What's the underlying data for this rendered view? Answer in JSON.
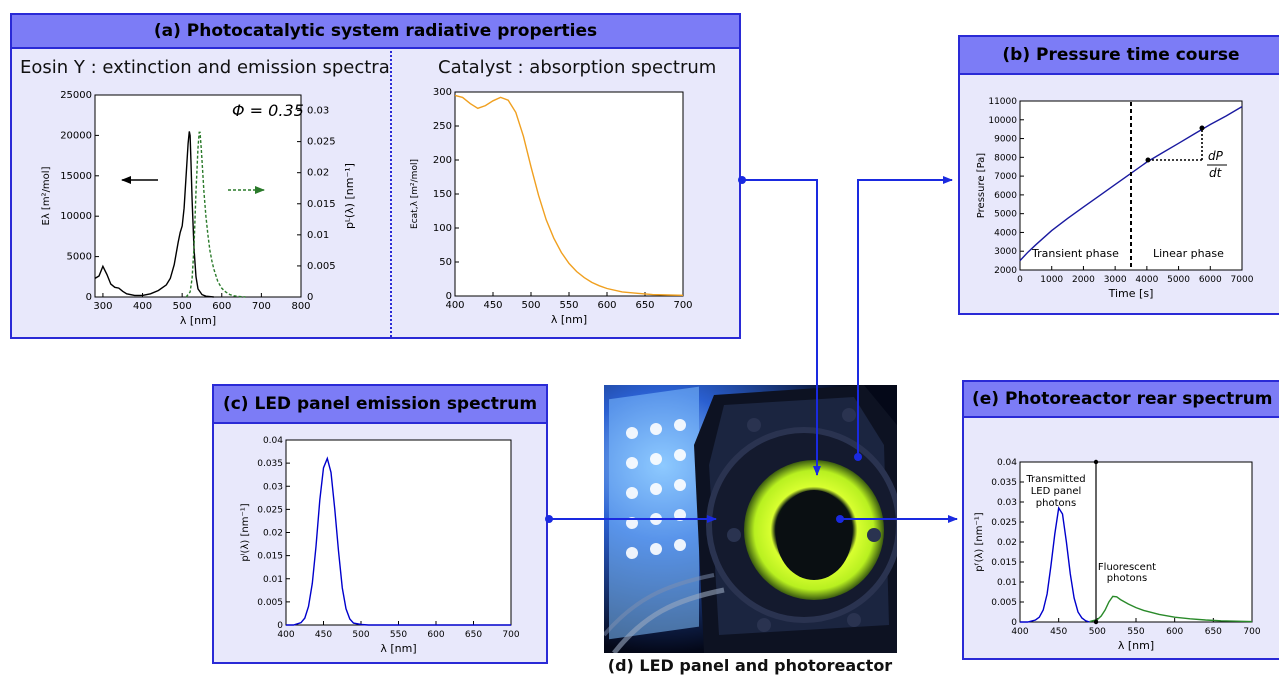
{
  "panel_a": {
    "title": "(a) Photocatalytic system radiative properties",
    "left_subtitle": "Eosin Y : extinction and emission spectra",
    "right_subtitle": "Catalyst : absorption spectrum",
    "phi_label": "Φ = 0.35"
  },
  "panel_b": {
    "title": "(b) Pressure time course",
    "transient_label": "Transient phase",
    "linear_label": "Linear phase",
    "dp_label": "dP",
    "dt_label": "dt"
  },
  "panel_c": {
    "title": "(c) LED panel emission spectrum"
  },
  "panel_d": {
    "caption": "(d) LED panel and photoreactor"
  },
  "panel_e": {
    "title": "(e) Photoreactor rear spectrum",
    "transmitted_label": [
      "Transmitted",
      "LED panel",
      "photons"
    ],
    "fluorescent_label": [
      "Fluorescent",
      "photons"
    ]
  },
  "colors": {
    "panel_bg": "#e8e8fb",
    "header_bg": "#7c7cf6",
    "border": "#2a2ad6",
    "eosin_extinction": "#000000",
    "eosin_emission": "#2a7a2a",
    "catalyst": "#f0a020",
    "pressure": "#1a1aa0",
    "led": "#0000cc",
    "fluorescent": "#2a8a2a"
  },
  "chart_data": [
    {
      "id": "eosin",
      "type": "line",
      "xlabel": "λ [nm]",
      "ylabel": "Eλ [m²/mol]",
      "y2label": "pᴸ(λ) [nm⁻¹]",
      "xlim": [
        280,
        800
      ],
      "ylim": [
        0,
        25000
      ],
      "y2lim": [
        0,
        0.0325
      ],
      "xticks": [
        "300",
        "400",
        "500",
        "600",
        "700",
        "800"
      ],
      "yticks": [
        "0",
        "5000",
        "10000",
        "15000",
        "20000",
        "25000"
      ],
      "y2ticks": [
        "0",
        "0.005",
        "0.01",
        "0.015",
        "0.02",
        "0.025",
        "0.03"
      ],
      "series": [
        {
          "axis": "left",
          "x": [
            280,
            290,
            300,
            310,
            320,
            330,
            340,
            350,
            360,
            380,
            400,
            420,
            440,
            460,
            470,
            480,
            490,
            495,
            500,
            505,
            510,
            515,
            518,
            520,
            522,
            525,
            530,
            535,
            540,
            550,
            560,
            580
          ],
          "values": [
            2300,
            2600,
            3800,
            2800,
            1600,
            1200,
            1100,
            700,
            400,
            200,
            200,
            400,
            800,
            1500,
            2300,
            4000,
            6800,
            8000,
            8800,
            11000,
            15000,
            19000,
            20500,
            20000,
            17000,
            12000,
            6000,
            2500,
            1000,
            300,
            100,
            0
          ]
        },
        {
          "axis": "right",
          "x": [
            510,
            520,
            525,
            530,
            535,
            540,
            543,
            545,
            548,
            550,
            555,
            560,
            565,
            570,
            575,
            580,
            590,
            600,
            610,
            620,
            630,
            640,
            650,
            660
          ],
          "values": [
            0,
            0.0008,
            0.003,
            0.008,
            0.017,
            0.024,
            0.0265,
            0.0265,
            0.024,
            0.022,
            0.017,
            0.013,
            0.01,
            0.0075,
            0.0058,
            0.0045,
            0.0025,
            0.0014,
            0.0008,
            0.0004,
            0.0002,
            0.0001,
            5e-05,
            0
          ]
        }
      ]
    },
    {
      "id": "catalyst",
      "type": "line",
      "xlabel": "λ [nm]",
      "ylabel": "Ecat,λ [m²/mol]",
      "xlim": [
        400,
        700
      ],
      "ylim": [
        0,
        300
      ],
      "xticks": [
        "400",
        "450",
        "500",
        "550",
        "600",
        "650",
        "700"
      ],
      "yticks": [
        "0",
        "50",
        "100",
        "150",
        "200",
        "250",
        "300"
      ],
      "series": [
        {
          "x": [
            400,
            410,
            420,
            430,
            440,
            450,
            460,
            470,
            480,
            490,
            500,
            510,
            520,
            530,
            540,
            550,
            560,
            570,
            580,
            590,
            600,
            620,
            640,
            660,
            680,
            700
          ],
          "values": [
            295,
            292,
            283,
            276,
            280,
            287,
            292,
            288,
            270,
            235,
            190,
            148,
            112,
            85,
            64,
            48,
            36,
            27,
            20,
            15,
            11,
            6,
            4,
            2,
            1.5,
            1
          ]
        }
      ]
    },
    {
      "id": "pressure",
      "type": "line",
      "xlabel": "Time [s]",
      "ylabel": "Pressure [Pa]",
      "xlim": [
        0,
        7000
      ],
      "ylim": [
        2000,
        11000
      ],
      "xticks": [
        "0",
        "1000",
        "2000",
        "3000",
        "4000",
        "5000",
        "6000",
        "7000"
      ],
      "yticks": [
        "2000",
        "3000",
        "4000",
        "5000",
        "6000",
        "7000",
        "8000",
        "9000",
        "10000",
        "11000"
      ],
      "series": [
        {
          "x": [
            0,
            250,
            500,
            1000,
            1500,
            2000,
            2500,
            3000,
            3500,
            4000,
            4500,
            5000,
            5500,
            6000,
            6500,
            7000
          ],
          "values": [
            2500,
            2950,
            3350,
            4100,
            4750,
            5350,
            5950,
            6550,
            7150,
            7750,
            8250,
            8750,
            9250,
            9750,
            10200,
            10700
          ]
        }
      ]
    },
    {
      "id": "led",
      "type": "line",
      "xlabel": "λ [nm]",
      "ylabel": "pᴵ(λ) [nm⁻¹]",
      "xlim": [
        400,
        700
      ],
      "ylim": [
        0,
        0.04
      ],
      "xticks": [
        "400",
        "450",
        "500",
        "550",
        "600",
        "650",
        "700"
      ],
      "yticks": [
        "0",
        "0.005",
        "0.01",
        "0.015",
        "0.02",
        "0.025",
        "0.03",
        "0.035",
        "0.04"
      ],
      "series": [
        {
          "x": [
            400,
            410,
            420,
            425,
            430,
            435,
            440,
            445,
            450,
            455,
            460,
            465,
            470,
            475,
            480,
            485,
            490,
            500,
            510,
            550,
            600,
            700
          ],
          "values": [
            0,
            0,
            0.0005,
            0.0015,
            0.004,
            0.009,
            0.017,
            0.027,
            0.034,
            0.036,
            0.033,
            0.025,
            0.016,
            0.008,
            0.0035,
            0.0013,
            0.0004,
            0.0001,
            0,
            0,
            0,
            0
          ]
        }
      ]
    },
    {
      "id": "rear",
      "type": "line",
      "xlabel": "λ [nm]",
      "ylabel": "pᶠ(λ) [nm⁻¹]",
      "xlim": [
        400,
        700
      ],
      "ylim": [
        0,
        0.04
      ],
      "xticks": [
        "400",
        "450",
        "500",
        "550",
        "600",
        "650",
        "700"
      ],
      "yticks": [
        "0",
        "0.005",
        "0.01",
        "0.015",
        "0.02",
        "0.025",
        "0.03",
        "0.035",
        "0.04"
      ],
      "series": [
        {
          "x": [
            400,
            410,
            420,
            425,
            430,
            435,
            440,
            445,
            450,
            455,
            460,
            465,
            470,
            475,
            480,
            485,
            490
          ],
          "values": [
            0,
            0,
            0.0005,
            0.0012,
            0.003,
            0.007,
            0.014,
            0.022,
            0.0285,
            0.027,
            0.02,
            0.012,
            0.006,
            0.0025,
            0.001,
            0.0003,
            0
          ]
        },
        {
          "x": [
            490,
            500,
            505,
            510,
            515,
            520,
            525,
            530,
            540,
            550,
            560,
            570,
            580,
            600,
            620,
            640,
            660,
            680,
            700
          ],
          "values": [
            0.0001,
            0.0006,
            0.0015,
            0.003,
            0.005,
            0.0064,
            0.0063,
            0.0056,
            0.0045,
            0.0036,
            0.0029,
            0.0024,
            0.0019,
            0.0012,
            0.0008,
            0.0005,
            0.0003,
            0.0002,
            0.0001
          ]
        }
      ]
    }
  ]
}
